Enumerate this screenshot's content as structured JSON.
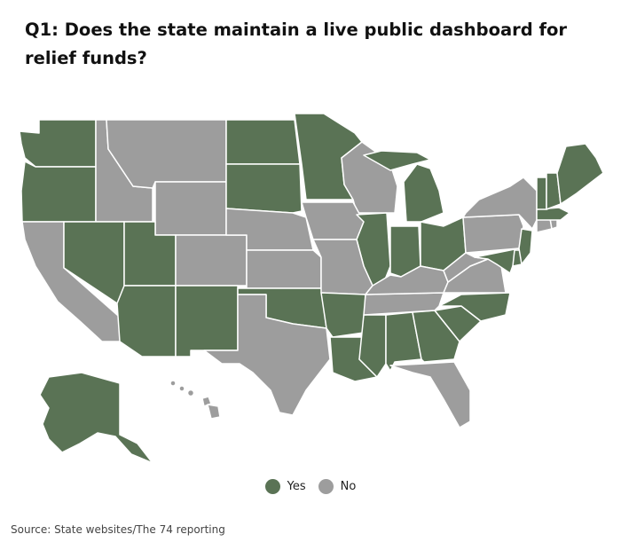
{
  "title": "Q1: Does the state maintain a live public dashboard for relief funds?",
  "colors": {
    "yes": "#5a7355",
    "no": "#9d9d9d",
    "background": "#ffffff"
  },
  "legend": {
    "yes_label": "Yes",
    "no_label": "No"
  },
  "source": "Source: State websites/The 74 reporting",
  "map_data": {
    "answers": {
      "WA": "yes",
      "OR": "yes",
      "ID": "no",
      "MT": "no",
      "WY": "no",
      "ND": "yes",
      "SD": "yes",
      "MN": "yes",
      "WI": "no",
      "MI": "yes",
      "CA": "no",
      "NV": "yes",
      "UT": "yes",
      "CO": "no",
      "NE": "no",
      "IA": "no",
      "IL": "yes",
      "IN": "yes",
      "OH": "yes",
      "PA": "no",
      "NY": "no",
      "VT": "yes",
      "NH": "yes",
      "ME": "yes",
      "MA": "yes",
      "CT": "no",
      "RI": "no",
      "NJ": "yes",
      "DE": "yes",
      "MD": "yes",
      "VA": "no",
      "WV": "no",
      "KY": "no",
      "TN": "no",
      "NC": "yes",
      "SC": "yes",
      "GA": "yes",
      "AL": "yes",
      "MS": "yes",
      "LA": "yes",
      "AR": "yes",
      "MO": "no",
      "KS": "no",
      "OK": "yes",
      "TX": "no",
      "NM": "yes",
      "AZ": "yes",
      "FL": "no",
      "AK": "yes",
      "HI": "no"
    }
  }
}
